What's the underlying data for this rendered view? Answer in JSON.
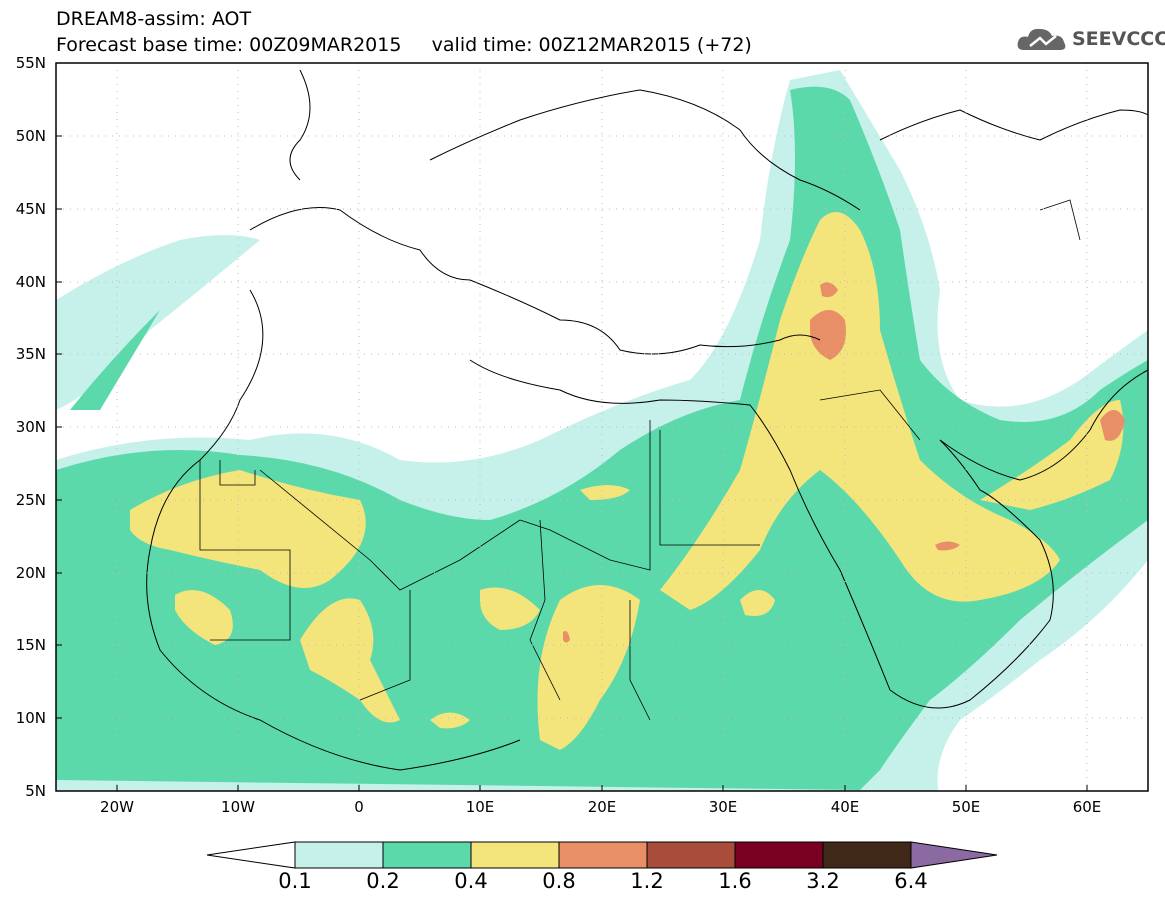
{
  "header": {
    "title_line1": "DREAM8-assim: AOT",
    "title_line2": "Forecast base time: 00Z09MAR2015     valid time: 00Z12MAR2015 (+72)",
    "logo_text": "SEEVCCC",
    "logo_icon": "cloud-icon"
  },
  "map": {
    "lat_range": [
      5,
      55
    ],
    "lon_range": [
      -25,
      65
    ],
    "lat_labels": [
      "55N",
      "50N",
      "45N",
      "40N",
      "35N",
      "30N",
      "25N",
      "20N",
      "15N",
      "10N",
      "5N"
    ],
    "lon_labels": [
      "20W",
      "10W",
      "0",
      "10E",
      "20E",
      "30E",
      "40E",
      "50E",
      "60E"
    ],
    "grid": "dotted",
    "variable": "AOT"
  },
  "colorbar": {
    "labels": [
      "0.1",
      "0.2",
      "0.4",
      "0.8",
      "1.2",
      "1.6",
      "3.2",
      "6.4"
    ],
    "colors": [
      "#ffffff",
      "#c6f0ea",
      "#5cd9aa",
      "#f4e47c",
      "#e88f68",
      "#a84c3c",
      "#7a0022",
      "#402818",
      "#8a6aa0"
    ]
  }
}
